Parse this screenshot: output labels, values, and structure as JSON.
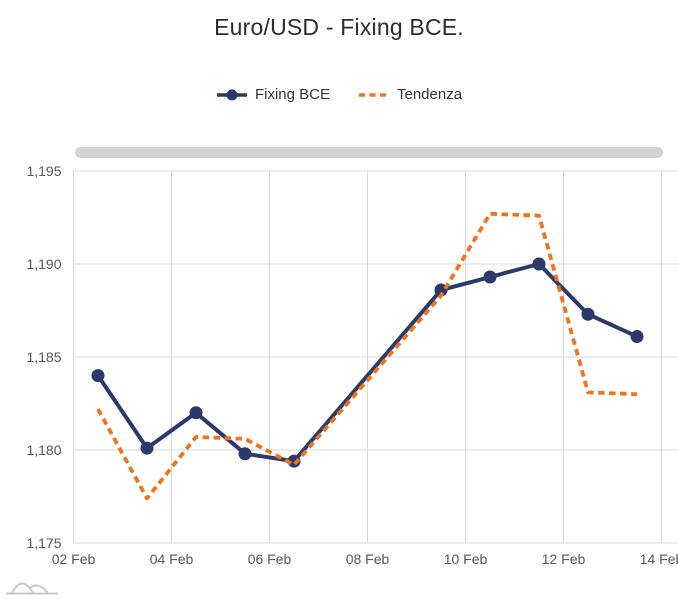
{
  "title": "Euro/USD - Fixing BCE.",
  "colors": {
    "series_fixing": "#2B3A6B",
    "series_tendenza": "#F0731D",
    "grid": "#D9D9D9",
    "axis_text": "#595959",
    "title_text": "#2D2D2D",
    "legend_text": "#333333",
    "scrollbar": "#D3D3D3",
    "watermark": "#C9C9C9"
  },
  "legend": {
    "items": [
      {
        "label": "Fixing BCE",
        "marker": "solid-line-with-dot"
      },
      {
        "label": "Tendenza",
        "marker": "dashed-line"
      }
    ]
  },
  "chart_data": {
    "type": "line",
    "title": "Euro/USD - Fixing BCE.",
    "xlabel": "",
    "ylabel": "",
    "grid": true,
    "legend_position": "top-center",
    "x_axis": {
      "tick_labels": [
        "02 Feb",
        "04 Feb",
        "06 Feb",
        "08 Feb",
        "10 Feb",
        "12 Feb",
        "14 Feb"
      ],
      "tick_interval_days": 2,
      "note": "data points plotted at daily category centers; weekend 07-08 Feb missing"
    },
    "y_axis": {
      "tick_labels": [
        "1,175",
        "1,180",
        "1,185",
        "1,190",
        "1,195"
      ],
      "tick_values": [
        1.175,
        1.18,
        1.185,
        1.19,
        1.195
      ],
      "range": [
        1.175,
        1.195
      ],
      "decimal_format": "comma"
    },
    "categories": [
      "02 Feb",
      "03 Feb",
      "04 Feb",
      "05 Feb",
      "06 Feb",
      "09 Feb",
      "10 Feb",
      "11 Feb",
      "12 Feb",
      "13 Feb"
    ],
    "x_day_offsets": [
      0.5,
      1.5,
      2.5,
      3.5,
      4.5,
      7.5,
      8.5,
      9.5,
      10.5,
      11.5
    ],
    "series": [
      {
        "name": "Fixing BCE",
        "color": "#2B3A6B",
        "line_style": "solid",
        "markers": true,
        "values": [
          1.184,
          1.1801,
          1.182,
          1.1798,
          1.1794,
          1.1886,
          1.1893,
          1.19,
          1.1873,
          1.1861
        ]
      },
      {
        "name": "Tendenza",
        "color": "#F0731D",
        "line_style": "dashed",
        "markers": false,
        "values": [
          1.1822,
          1.1774,
          1.1807,
          1.1806,
          1.1792,
          1.1883,
          1.1927,
          1.1926,
          1.1831,
          1.183
        ]
      }
    ]
  }
}
